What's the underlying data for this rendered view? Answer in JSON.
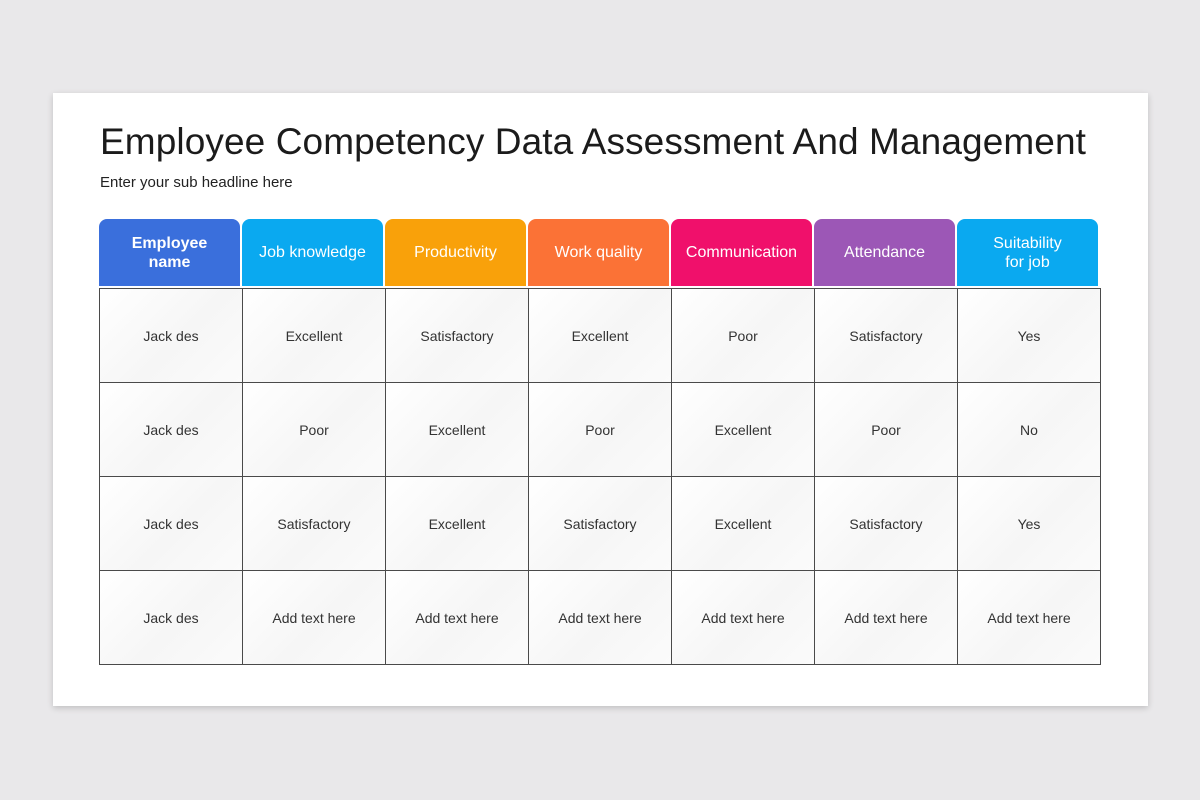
{
  "slide": {
    "title": "Employee Competency Data Assessment And Management",
    "subtitle": "Enter your sub headline here"
  },
  "table": {
    "headers": [
      {
        "label": "Employee\nname",
        "color": "#3a6fdc"
      },
      {
        "label": "Job knowledge",
        "color": "#0aa9f0"
      },
      {
        "label": "Productivity",
        "color": "#f9a10a"
      },
      {
        "label": "Work quality",
        "color": "#fb7236"
      },
      {
        "label": "Communication",
        "color": "#f0106b"
      },
      {
        "label": "Attendance",
        "color": "#9c57b6"
      },
      {
        "label": "Suitability\nfor job",
        "color": "#0aa9f0"
      }
    ],
    "rows": [
      [
        "Jack des",
        "Excellent",
        "Satisfactory",
        "Excellent",
        "Poor",
        "Satisfactory",
        "Yes"
      ],
      [
        "Jack des",
        "Poor",
        "Excellent",
        "Poor",
        "Excellent",
        "Poor",
        "No"
      ],
      [
        "Jack des",
        "Satisfactory",
        "Excellent",
        "Satisfactory",
        "Excellent",
        "Satisfactory",
        "Yes"
      ],
      [
        "Jack des",
        "Add text here",
        "Add text here",
        "Add text here",
        "Add text here",
        "Add text here",
        "Add text here"
      ]
    ]
  }
}
